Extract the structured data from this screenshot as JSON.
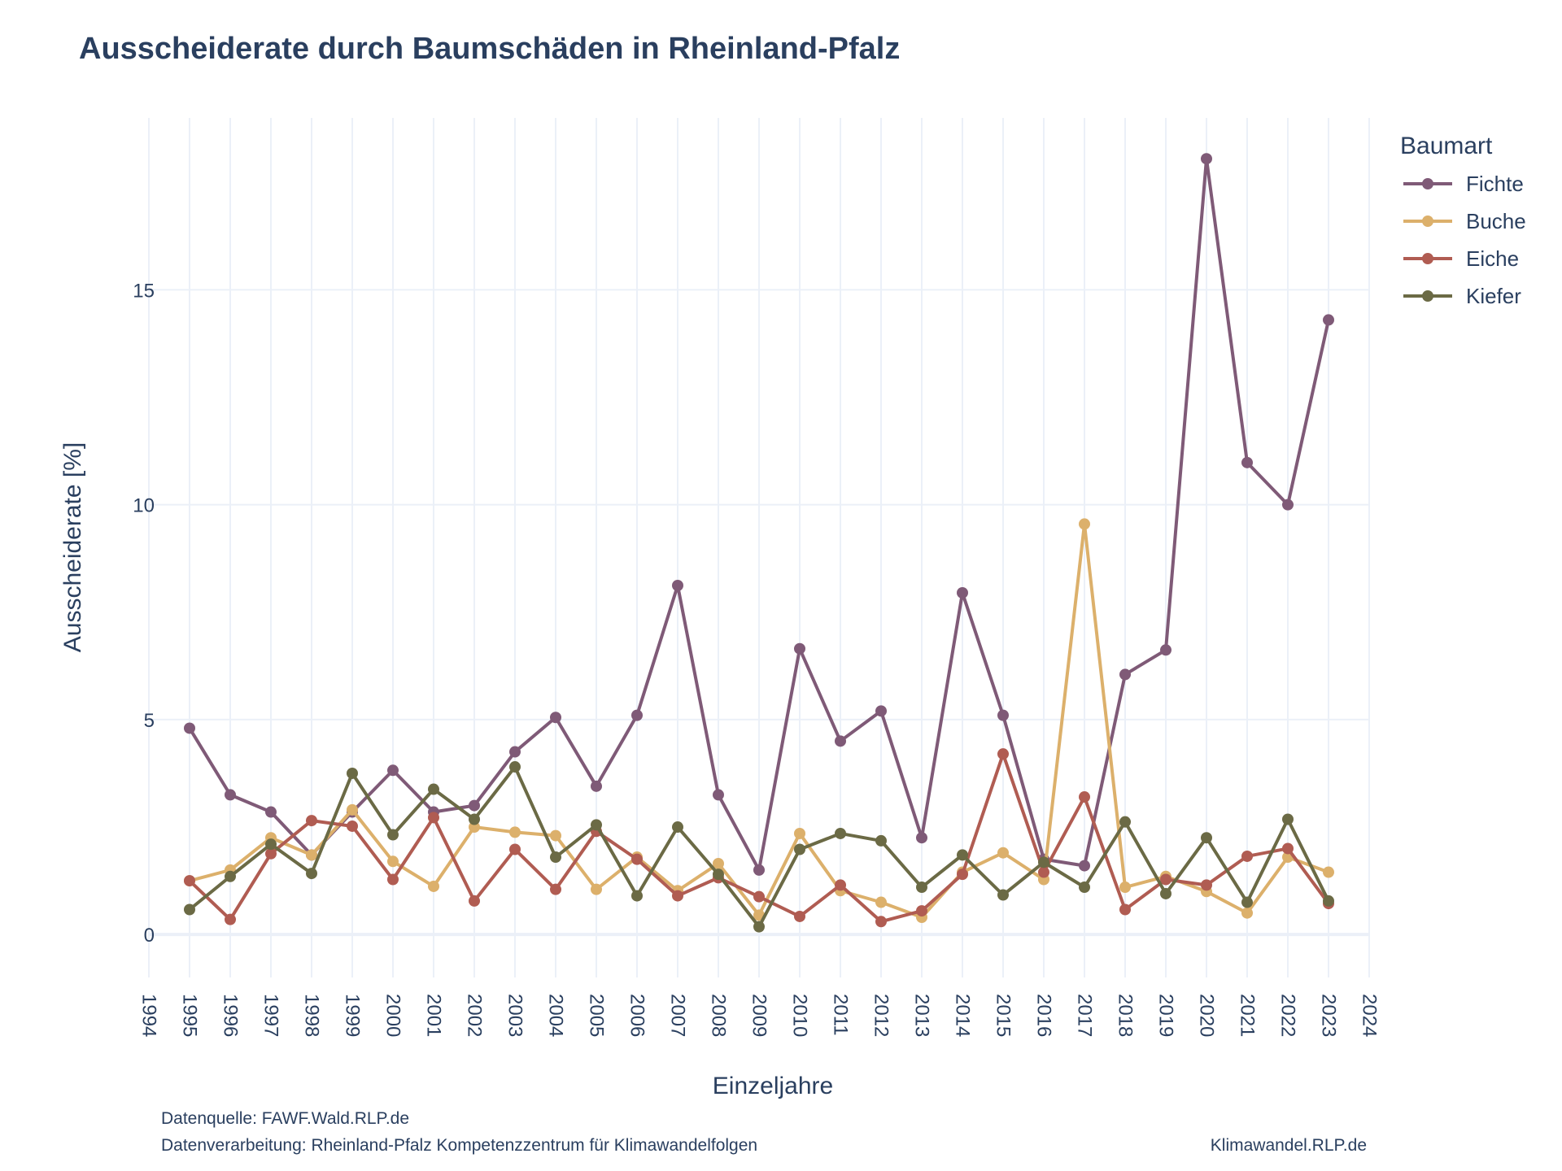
{
  "chart_data": {
    "type": "line",
    "title": "Ausscheiderate durch Baumschäden in Rheinland-Pfalz",
    "xlabel": "Einzeljahre",
    "ylabel": "Ausscheiderate [%]",
    "xlim": [
      1994,
      2024
    ],
    "ylim": [
      -1,
      19
    ],
    "yticks": [
      0,
      5,
      10,
      15
    ],
    "xticks": [
      1994,
      1995,
      1996,
      1997,
      1998,
      1999,
      2000,
      2001,
      2002,
      2003,
      2004,
      2005,
      2006,
      2007,
      2008,
      2009,
      2010,
      2011,
      2012,
      2013,
      2014,
      2015,
      2016,
      2017,
      2018,
      2019,
      2020,
      2021,
      2022,
      2023,
      2024
    ],
    "grid": true,
    "legend": {
      "title": "Baumart",
      "position": "top-right"
    },
    "x": [
      1995,
      1996,
      1997,
      1998,
      1999,
      2000,
      2001,
      2002,
      2003,
      2004,
      2005,
      2006,
      2007,
      2008,
      2009,
      2010,
      2011,
      2012,
      2013,
      2014,
      2015,
      2016,
      2017,
      2018,
      2019,
      2020,
      2021,
      2022,
      2023
    ],
    "series": [
      {
        "name": "Fichte",
        "color": "#7f5a77",
        "values": [
          4.8,
          3.25,
          2.85,
          1.85,
          2.85,
          3.82,
          2.85,
          3.0,
          4.25,
          5.05,
          3.45,
          5.1,
          8.12,
          3.25,
          1.5,
          6.65,
          4.5,
          5.2,
          2.25,
          7.95,
          5.1,
          1.75,
          1.6,
          6.05,
          6.62,
          18.05,
          10.98,
          10.0,
          14.3
        ]
      },
      {
        "name": "Buche",
        "color": "#dcb06b",
        "values": [
          1.25,
          1.5,
          2.25,
          1.85,
          2.9,
          1.7,
          1.12,
          2.5,
          2.38,
          2.3,
          1.05,
          1.8,
          1.02,
          1.65,
          0.45,
          2.35,
          1.02,
          0.75,
          0.4,
          1.45,
          1.9,
          1.28,
          9.55,
          1.1,
          1.35,
          1.0,
          0.5,
          1.8,
          1.45
        ]
      },
      {
        "name": "Eiche",
        "color": "#b05c52",
        "values": [
          1.25,
          0.35,
          1.88,
          2.65,
          2.52,
          1.28,
          2.72,
          0.78,
          1.98,
          1.05,
          2.4,
          1.75,
          0.9,
          1.32,
          0.88,
          0.42,
          1.15,
          0.3,
          0.55,
          1.4,
          4.2,
          1.45,
          3.2,
          0.58,
          1.28,
          1.15,
          1.82,
          2.0,
          0.72
        ]
      },
      {
        "name": "Kiefer",
        "color": "#6b6a45",
        "values": [
          0.58,
          1.35,
          2.1,
          1.42,
          3.75,
          2.32,
          3.38,
          2.68,
          3.9,
          1.8,
          2.55,
          0.9,
          2.5,
          1.4,
          0.18,
          1.98,
          2.35,
          2.18,
          1.1,
          1.85,
          0.92,
          1.68,
          1.1,
          2.62,
          0.95,
          2.25,
          0.75,
          2.68,
          0.78
        ]
      }
    ]
  },
  "footer": {
    "source": "Datenquelle: FAWF.Wald.RLP.de",
    "processing": "Datenverarbeitung: Rheinland-Pfalz Kompetenzzentrum für Klimawandelfolgen",
    "brand": "Klimawandel.RLP.de"
  }
}
